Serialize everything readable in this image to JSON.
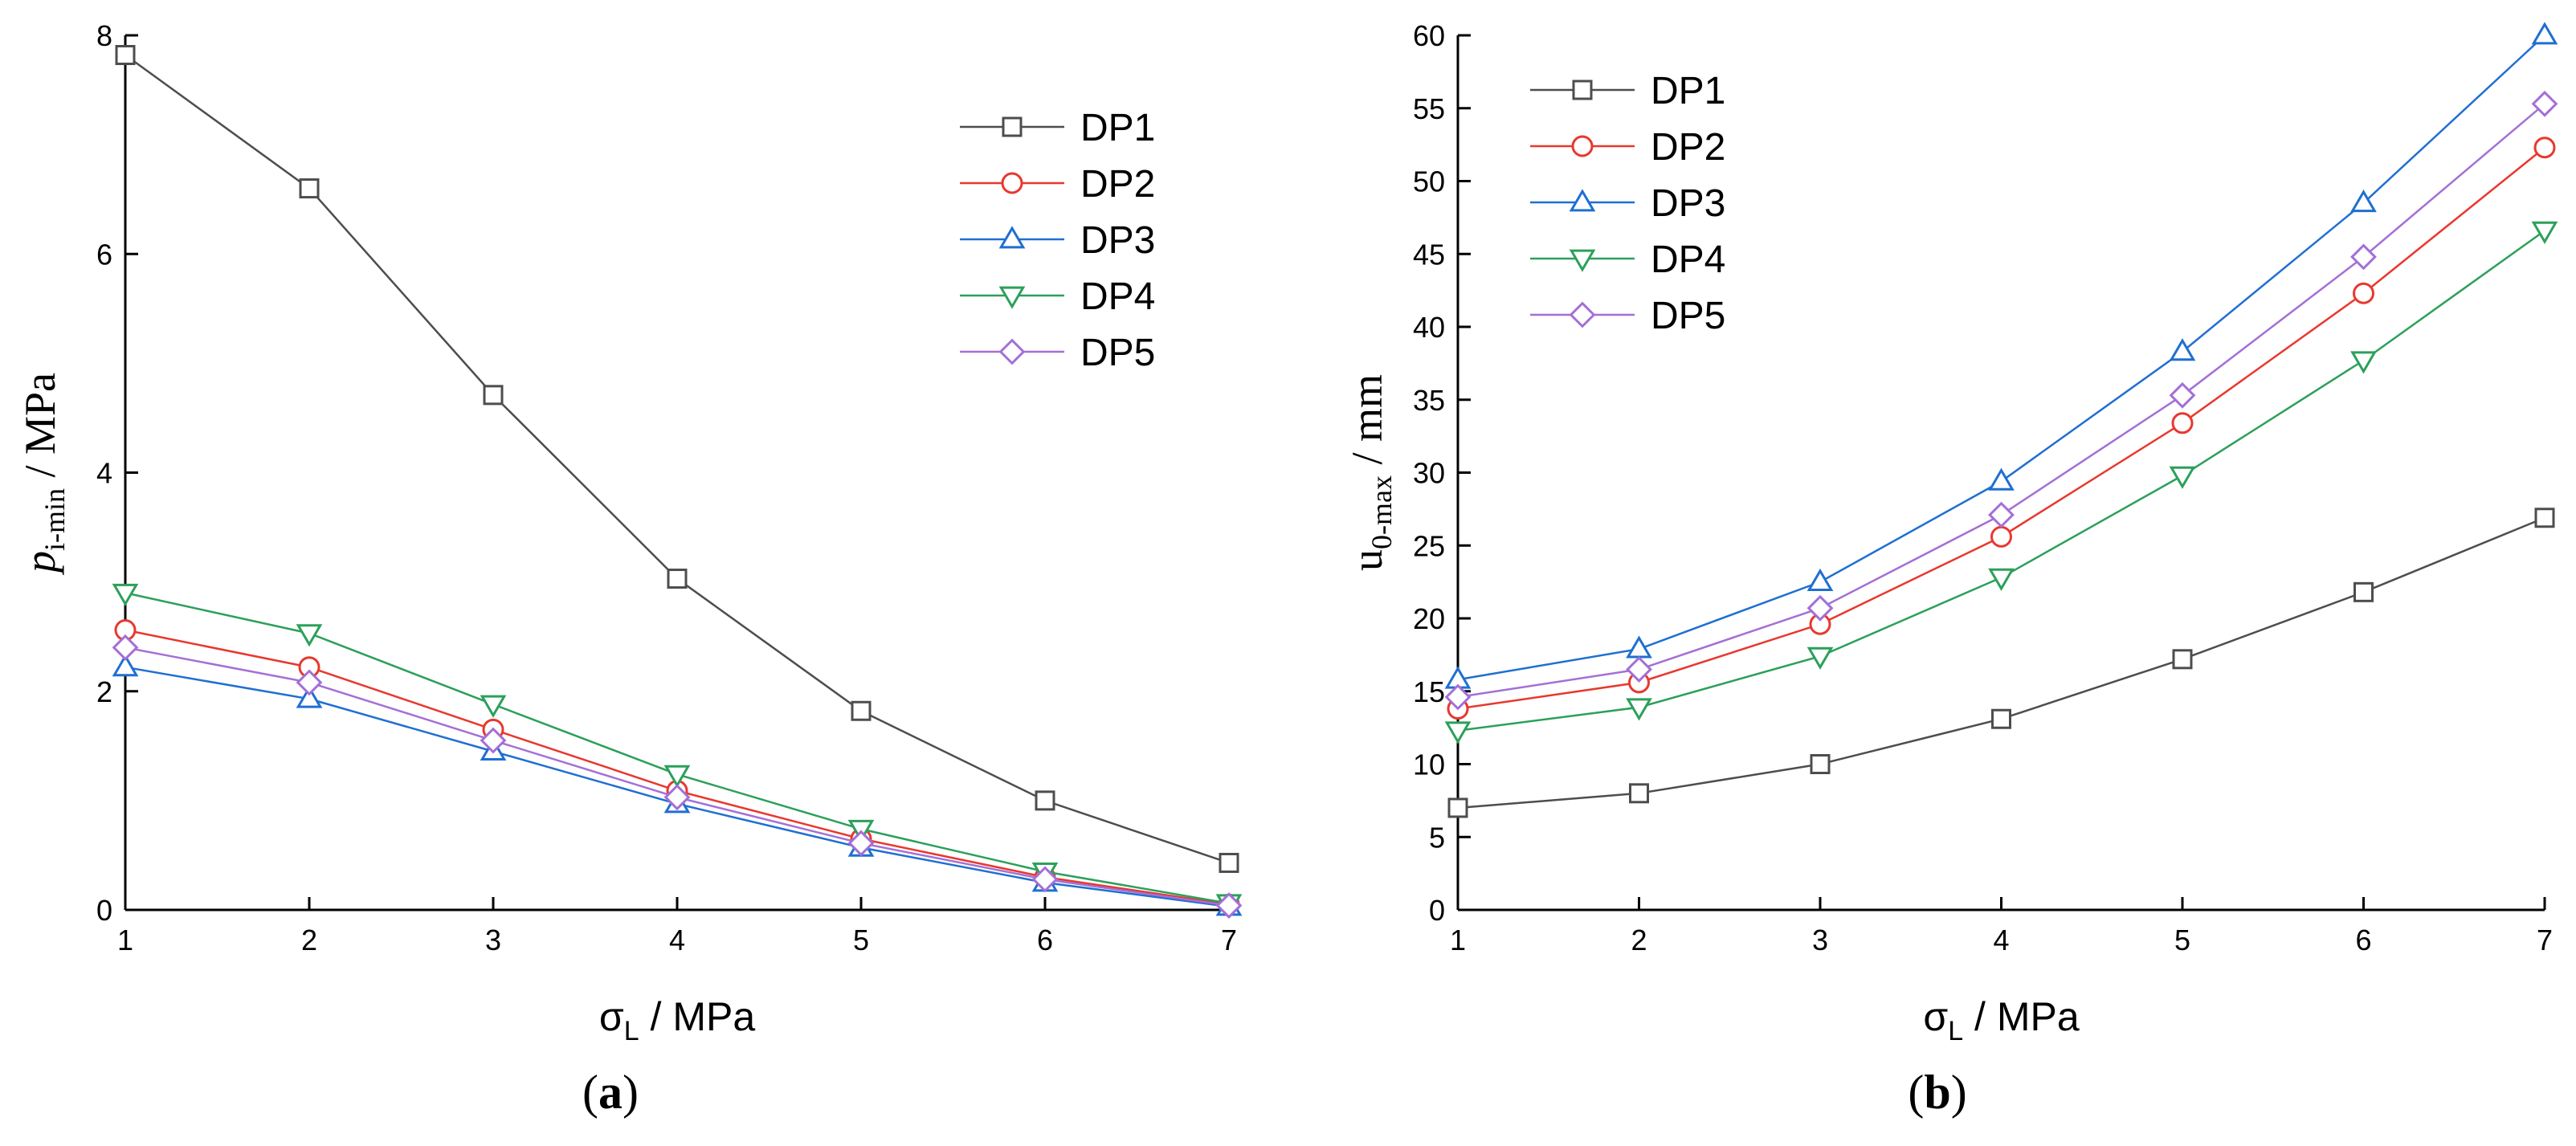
{
  "colors": {
    "DP1": "#4d4d4d",
    "DP2": "#e8382e",
    "DP3": "#1f6fd1",
    "DP4": "#2ca05a",
    "DP5": "#a46fd6"
  },
  "chart_data": [
    {
      "type": "line",
      "panel_label": "a",
      "xlabel_main": "σ",
      "xlabel_sub": "L",
      "xlabel_unit": " / MPa",
      "ylabel_main": "p",
      "ylabel_sub": "i-min",
      "ylabel_unit": " / MPa",
      "x": [
        1,
        2,
        3,
        4,
        5,
        6,
        7
      ],
      "xlim": [
        1,
        7
      ],
      "ylim": [
        0,
        8
      ],
      "yticks": [
        0,
        2,
        4,
        6,
        8
      ],
      "legend_position": "top-right",
      "series": [
        {
          "name": "DP1",
          "marker": "square",
          "values": [
            7.82,
            6.6,
            4.71,
            3.03,
            1.82,
            1.0,
            0.43
          ]
        },
        {
          "name": "DP2",
          "marker": "circle",
          "values": [
            2.56,
            2.22,
            1.65,
            1.09,
            0.65,
            0.3,
            0.05
          ]
        },
        {
          "name": "DP3",
          "marker": "triangle-up",
          "values": [
            2.22,
            1.93,
            1.45,
            0.97,
            0.57,
            0.25,
            0.03
          ]
        },
        {
          "name": "DP4",
          "marker": "triangle-down",
          "values": [
            2.9,
            2.53,
            1.88,
            1.24,
            0.74,
            0.35,
            0.06
          ]
        },
        {
          "name": "DP5",
          "marker": "diamond",
          "values": [
            2.4,
            2.08,
            1.55,
            1.03,
            0.61,
            0.28,
            0.04
          ]
        }
      ]
    },
    {
      "type": "line",
      "panel_label": "b",
      "xlabel_main": "σ",
      "xlabel_sub": "L",
      "xlabel_unit": " / MPa",
      "ylabel_main": "u",
      "ylabel_sub": "0-max",
      "ylabel_unit": " / mm",
      "x": [
        1,
        2,
        3,
        4,
        5,
        6,
        7
      ],
      "xlim": [
        1,
        7
      ],
      "ylim": [
        0,
        60
      ],
      "yticks": [
        0,
        5,
        10,
        15,
        20,
        25,
        30,
        35,
        40,
        45,
        50,
        55,
        60
      ],
      "legend_position": "top-left",
      "series": [
        {
          "name": "DP1",
          "marker": "square",
          "values": [
            7.0,
            8.0,
            10.0,
            13.1,
            17.2,
            21.8,
            26.9
          ]
        },
        {
          "name": "DP2",
          "marker": "circle",
          "values": [
            13.8,
            15.6,
            19.6,
            25.6,
            33.4,
            42.3,
            52.3
          ]
        },
        {
          "name": "DP3",
          "marker": "triangle-up",
          "values": [
            15.8,
            17.9,
            22.5,
            29.4,
            38.3,
            48.5,
            60.0
          ]
        },
        {
          "name": "DP4",
          "marker": "triangle-down",
          "values": [
            12.3,
            13.9,
            17.4,
            22.8,
            29.8,
            37.7,
            46.6
          ]
        },
        {
          "name": "DP5",
          "marker": "diamond",
          "values": [
            14.6,
            16.5,
            20.7,
            27.1,
            35.3,
            44.8,
            55.3
          ]
        }
      ]
    }
  ]
}
